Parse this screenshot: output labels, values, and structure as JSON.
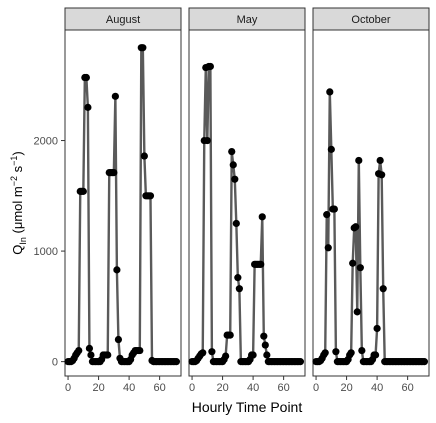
{
  "chart_data": {
    "type": "line",
    "facet_by": "month",
    "xlabel": "Hourly Time Point",
    "ylabel": {
      "base": "Q",
      "sub": "In",
      "unit_pre": " (μmol m",
      "exp1": "−2",
      "unit_mid": " s",
      "exp2": "−1",
      "unit_post": ")"
    },
    "xlim": [
      -2,
      74
    ],
    "ylim": [
      -130,
      3000
    ],
    "x_ticks": [
      0,
      20,
      40,
      60
    ],
    "y_ticks": [
      0,
      1000,
      2000
    ],
    "colors": {
      "line": "#5a5a5a",
      "point": "#000000",
      "strip_fill": "#d9d9d9",
      "panel_border": "#333333"
    },
    "panels": [
      {
        "name": "August",
        "x": [
          0,
          1,
          2,
          3,
          4,
          5,
          6,
          7,
          8,
          9,
          10,
          11,
          12,
          13,
          14,
          15,
          16,
          17,
          18,
          19,
          20,
          21,
          22,
          23,
          24,
          25,
          26,
          27,
          28,
          29,
          30,
          31,
          32,
          33,
          34,
          35,
          36,
          37,
          38,
          39,
          40,
          41,
          42,
          43,
          44,
          45,
          46,
          47,
          48,
          49,
          50,
          51,
          52,
          53,
          54,
          55,
          56,
          57,
          58,
          59,
          60,
          61,
          62,
          63,
          64,
          65,
          66,
          67,
          68,
          69,
          70,
          71
        ],
        "y": [
          0,
          0,
          0,
          10,
          30,
          60,
          80,
          100,
          1540,
          1540,
          1540,
          2570,
          2570,
          2300,
          120,
          60,
          0,
          0,
          0,
          0,
          0,
          0,
          20,
          60,
          60,
          60,
          60,
          1710,
          1710,
          1710,
          1710,
          2400,
          830,
          200,
          30,
          0,
          0,
          0,
          0,
          0,
          0,
          20,
          60,
          80,
          100,
          100,
          100,
          100,
          2840,
          2840,
          1860,
          1500,
          1500,
          1500,
          1500,
          10,
          0,
          0,
          0,
          0,
          0,
          0,
          0,
          0,
          0,
          0,
          0,
          0,
          0,
          0,
          0,
          0
        ]
      },
      {
        "name": "May",
        "x": [
          0,
          1,
          2,
          3,
          4,
          5,
          6,
          7,
          8,
          9,
          10,
          11,
          12,
          13,
          14,
          15,
          16,
          17,
          18,
          19,
          20,
          21,
          22,
          23,
          24,
          25,
          26,
          27,
          28,
          29,
          30,
          31,
          32,
          33,
          34,
          35,
          36,
          37,
          38,
          39,
          40,
          41,
          42,
          43,
          44,
          45,
          46,
          47,
          48,
          49,
          50,
          51,
          52,
          53,
          54,
          55,
          56,
          57,
          58,
          59,
          60,
          61,
          62,
          63,
          64,
          65,
          66,
          67,
          68,
          69,
          70,
          71
        ],
        "y": [
          0,
          0,
          0,
          10,
          30,
          50,
          70,
          80,
          2000,
          2660,
          2000,
          2670,
          2670,
          90,
          0,
          0,
          0,
          0,
          0,
          0,
          0,
          20,
          50,
          240,
          240,
          240,
          1900,
          1780,
          1650,
          1250,
          760,
          660,
          0,
          0,
          0,
          0,
          0,
          0,
          20,
          60,
          60,
          880,
          880,
          880,
          880,
          880,
          1310,
          230,
          150,
          60,
          0,
          0,
          0,
          0,
          0,
          0,
          0,
          0,
          0,
          0,
          0,
          0,
          0,
          0,
          0,
          0,
          0,
          0,
          0,
          0,
          0,
          0
        ]
      },
      {
        "name": "October",
        "x": [
          0,
          1,
          2,
          3,
          4,
          5,
          6,
          7,
          8,
          9,
          10,
          11,
          12,
          13,
          14,
          15,
          16,
          17,
          18,
          19,
          20,
          21,
          22,
          23,
          24,
          25,
          26,
          27,
          28,
          29,
          30,
          31,
          32,
          33,
          34,
          35,
          36,
          37,
          38,
          39,
          40,
          41,
          42,
          43,
          44,
          45,
          46,
          47,
          48,
          49,
          50,
          51,
          52,
          53,
          54,
          55,
          56,
          57,
          58,
          59,
          60,
          61,
          62,
          63,
          64,
          65,
          66,
          67,
          68,
          69,
          70,
          71
        ],
        "y": [
          0,
          0,
          0,
          10,
          30,
          60,
          80,
          1330,
          1030,
          2440,
          1920,
          1380,
          1380,
          90,
          0,
          0,
          0,
          0,
          0,
          0,
          0,
          20,
          60,
          80,
          890,
          1210,
          1220,
          450,
          1820,
          850,
          100,
          0,
          0,
          0,
          0,
          0,
          0,
          20,
          60,
          60,
          300,
          1700,
          1820,
          1690,
          660,
          0,
          0,
          0,
          0,
          0,
          0,
          0,
          0,
          0,
          0,
          0,
          0,
          0,
          0,
          0,
          0,
          0,
          0,
          0,
          0,
          0,
          0,
          0,
          0,
          0,
          0,
          0
        ]
      }
    ]
  }
}
